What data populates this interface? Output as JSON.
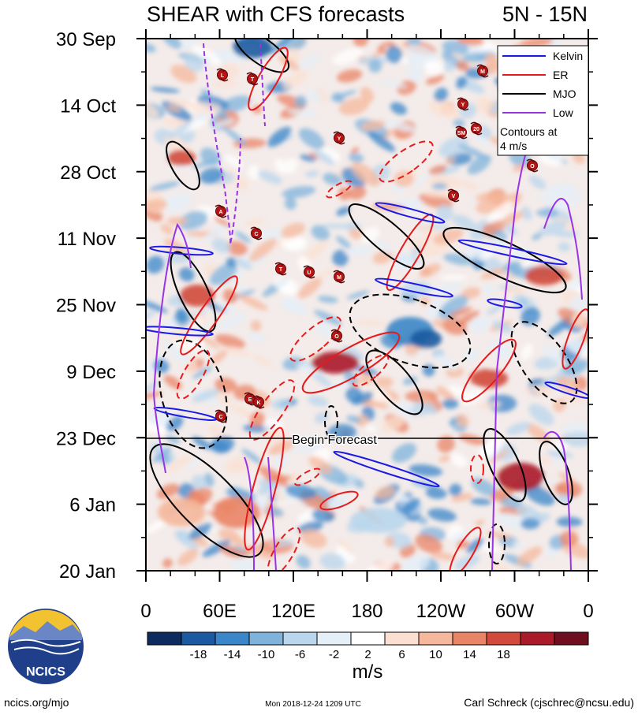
{
  "header": {
    "title": "SHEAR with CFS forecasts",
    "region": "5N - 15N"
  },
  "legend": {
    "items": [
      {
        "label": "Kelvin",
        "color": "#1a1ae6"
      },
      {
        "label": "ER",
        "color": "#e61a1a"
      },
      {
        "label": "MJO",
        "color": "#000000"
      },
      {
        "label": "Low",
        "color": "#9933e6"
      }
    ],
    "note_line1": "Contours at",
    "note_line2": "4 m/s"
  },
  "annotations": {
    "forecast_label": "Begin Forecast"
  },
  "colorbar": {
    "tick_labels": [
      "-18",
      "-14",
      "-10",
      "-6",
      "-2",
      "2",
      "6",
      "10",
      "14",
      "18"
    ],
    "colors": [
      "#0d2b5e",
      "#1b5aa0",
      "#3a86c8",
      "#7fb3dc",
      "#b9d6ec",
      "#e4eff8",
      "#ffffff",
      "#fbe0d2",
      "#f5b89c",
      "#ea8466",
      "#d24a3c",
      "#aa1a28",
      "#6e0e1e"
    ],
    "unit": "m/s"
  },
  "footer": {
    "logo_text": "NCICS",
    "url": "ncics.org/mjo",
    "timestamp": "Mon 2018-12-24 1209 UTC",
    "author": "Carl Schreck (cjschrec@ncsu.edu)"
  },
  "storm_markers": [
    "L",
    "T",
    "M",
    "Y",
    "Y",
    "SM",
    "20",
    "V",
    "O",
    "A",
    "C",
    "T",
    "U",
    "M",
    "O",
    "E",
    "K",
    "C"
  ],
  "chart_data": {
    "type": "heatmap",
    "title": "SHEAR with CFS forecasts",
    "subtitle": "5N - 15N",
    "x_tick_labels": [
      "0",
      "60E",
      "120E",
      "180",
      "120W",
      "60W",
      "0"
    ],
    "x_values": [
      0,
      60,
      120,
      180,
      240,
      300,
      360
    ],
    "xlim": [
      0,
      360
    ],
    "y_tick_labels": [
      "30 Sep",
      "14 Oct",
      "28 Oct",
      "11 Nov",
      "25 Nov",
      "9 Dec",
      "23 Dec",
      "6 Jan",
      "20 Jan"
    ],
    "y_values": [
      "2018-09-30",
      "2018-10-14",
      "2018-10-28",
      "2018-11-11",
      "2018-11-25",
      "2018-12-09",
      "2018-12-23",
      "2019-01-06",
      "2019-01-20"
    ],
    "ylim": [
      "2018-09-30",
      "2019-01-20"
    ],
    "y_direction": "time increases downward",
    "forecast_start": "2018-12-23",
    "colorbar_levels": [
      -18,
      -14,
      -10,
      -6,
      -2,
      2,
      6,
      10,
      14,
      18
    ],
    "unit": "m/s",
    "contour_interval": 4,
    "contour_series": [
      "Kelvin",
      "ER",
      "MJO",
      "Low"
    ]
  }
}
